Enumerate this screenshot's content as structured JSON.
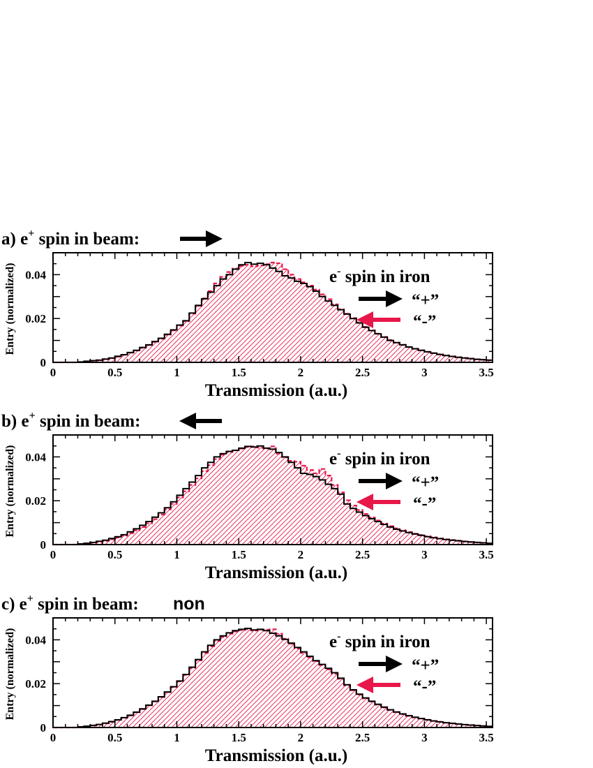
{
  "colors": {
    "plus": "#000000",
    "minus": "#e8174a",
    "axis": "#000000"
  },
  "legend_title": "spin in iron",
  "legend_title_particle": "e",
  "legend_title_sup": "-",
  "legend_plus": "“+”",
  "legend_minus": "“-”",
  "chart_data": [
    {
      "type": "histogram",
      "panel": "a)",
      "title": "e",
      "title_sup": "+",
      "title_text": "spin in beam:",
      "title_suffix": "",
      "beam_arrow": "right",
      "xlabel": "Transmission (a.u.)",
      "ylabel": "Entry (normalized)",
      "xlim": [
        0,
        3.55
      ],
      "ylim": [
        0,
        0.05
      ],
      "xticks": [
        "0",
        "0.5",
        "1",
        "1.5",
        "2",
        "2.5",
        "3",
        "3.5"
      ],
      "yticks": [
        "0",
        "0.02",
        "0.04"
      ],
      "bin_width": 0.05,
      "series": [
        {
          "name": "“+”",
          "values": [
            0,
            0,
            0,
            0,
            0.0002,
            0.0005,
            0.0008,
            0.001,
            0.0015,
            0.002,
            0.0028,
            0.0035,
            0.0045,
            0.0055,
            0.0068,
            0.008,
            0.0095,
            0.011,
            0.0128,
            0.0148,
            0.017,
            0.019,
            0.0225,
            0.026,
            0.029,
            0.032,
            0.035,
            0.038,
            0.04,
            0.0425,
            0.0445,
            0.0455,
            0.0448,
            0.0452,
            0.0445,
            0.043,
            0.0415,
            0.0395,
            0.0385,
            0.037,
            0.036,
            0.0345,
            0.0325,
            0.03,
            0.028,
            0.026,
            0.024,
            0.022,
            0.02,
            0.018,
            0.016,
            0.0145,
            0.013,
            0.0115,
            0.01,
            0.009,
            0.008,
            0.007,
            0.0062,
            0.0055,
            0.0048,
            0.0042,
            0.0036,
            0.0031,
            0.0027,
            0.0023,
            0.002,
            0.0017,
            0.0014,
            0.0012,
            0.001,
            0.0008
          ]
        },
        {
          "name": "“-”",
          "values": [
            0,
            0,
            0,
            0,
            0.0001,
            0.0004,
            0.0007,
            0.001,
            0.0014,
            0.0019,
            0.0026,
            0.0034,
            0.0044,
            0.0054,
            0.0066,
            0.0079,
            0.0093,
            0.0108,
            0.0126,
            0.0146,
            0.0168,
            0.0188,
            0.0222,
            0.0258,
            0.0292,
            0.0325,
            0.036,
            0.039,
            0.0412,
            0.0428,
            0.044,
            0.0445,
            0.0438,
            0.0442,
            0.0448,
            0.0455,
            0.0452,
            0.0425,
            0.04,
            0.038,
            0.0365,
            0.035,
            0.0332,
            0.031,
            0.0288,
            0.0265,
            0.0242,
            0.0222,
            0.0202,
            0.0182,
            0.0162,
            0.0146,
            0.0131,
            0.0116,
            0.0102,
            0.009,
            0.008,
            0.007,
            0.0062,
            0.0055,
            0.0048,
            0.0042,
            0.0037,
            0.0032,
            0.0027,
            0.0023,
            0.002,
            0.0017,
            0.0014,
            0.0012,
            0.001,
            0.0008
          ]
        }
      ]
    },
    {
      "type": "histogram",
      "panel": "b)",
      "title": "e",
      "title_sup": "+",
      "title_text": "spin in beam:",
      "title_suffix": "",
      "beam_arrow": "left",
      "xlabel": "Transmission (a.u.)",
      "ylabel": "Entry (normalized)",
      "xlim": [
        0,
        3.55
      ],
      "ylim": [
        0,
        0.05
      ],
      "xticks": [
        "0",
        "0.5",
        "1",
        "1.5",
        "2",
        "2.5",
        "3",
        "3.5"
      ],
      "yticks": [
        "0",
        "0.02",
        "0.04"
      ],
      "bin_width": 0.05,
      "series": [
        {
          "name": "“+”",
          "values": [
            0,
            0,
            0,
            0,
            0.0003,
            0.0006,
            0.001,
            0.0015,
            0.002,
            0.0028,
            0.0036,
            0.0045,
            0.0058,
            0.0072,
            0.0088,
            0.0105,
            0.0125,
            0.0145,
            0.0168,
            0.0195,
            0.0225,
            0.0255,
            0.0285,
            0.0315,
            0.035,
            0.0375,
            0.04,
            0.0415,
            0.0425,
            0.043,
            0.044,
            0.0448,
            0.0445,
            0.045,
            0.044,
            0.0435,
            0.042,
            0.04,
            0.0375,
            0.035,
            0.0325,
            0.032,
            0.031,
            0.0295,
            0.0275,
            0.0255,
            0.023,
            0.0185,
            0.0165,
            0.0148,
            0.0132,
            0.0118,
            0.0105,
            0.0092,
            0.008,
            0.007,
            0.0062,
            0.0055,
            0.0048,
            0.0042,
            0.0036,
            0.0031,
            0.0027,
            0.0023,
            0.002,
            0.0017,
            0.0014,
            0.0012,
            0.001,
            0.0008,
            0.0006
          ]
        },
        {
          "name": "“-”",
          "values": [
            0,
            0,
            0,
            0,
            0.0002,
            0.0005,
            0.0008,
            0.0012,
            0.0017,
            0.0024,
            0.0032,
            0.0041,
            0.0052,
            0.0065,
            0.008,
            0.0097,
            0.0116,
            0.0137,
            0.016,
            0.0186,
            0.0215,
            0.0243,
            0.0272,
            0.0302,
            0.0335,
            0.0362,
            0.039,
            0.041,
            0.0422,
            0.043,
            0.0438,
            0.0445,
            0.0448,
            0.0442,
            0.0438,
            0.0448,
            0.0415,
            0.0398,
            0.0382,
            0.0378,
            0.036,
            0.034,
            0.0325,
            0.0345,
            0.0315,
            0.0272,
            0.0238,
            0.0202,
            0.0178,
            0.0158,
            0.014,
            0.0124,
            0.011,
            0.0096,
            0.0084,
            0.0074,
            0.0065,
            0.0057,
            0.005,
            0.0044,
            0.0038,
            0.0033,
            0.0028,
            0.0024,
            0.0021,
            0.0018,
            0.0015,
            0.0012,
            0.001,
            0.0008,
            0.0006
          ]
        }
      ]
    },
    {
      "type": "histogram",
      "panel": "c)",
      "title": "e",
      "title_sup": "+",
      "title_text": "spin in beam:",
      "title_suffix": "non",
      "beam_arrow": "none",
      "xlabel": "Transmission (a.u.)",
      "ylabel": "Entry (normalized)",
      "xlim": [
        0,
        3.55
      ],
      "ylim": [
        0,
        0.05
      ],
      "xticks": [
        "0",
        "0.5",
        "1",
        "1.5",
        "2",
        "2.5",
        "3",
        "3.5"
      ],
      "yticks": [
        "0",
        "0.02",
        "0.04"
      ],
      "bin_width": 0.05,
      "series": [
        {
          "name": "“+”",
          "values": [
            0,
            0,
            0,
            0,
            0.0003,
            0.0006,
            0.001,
            0.0014,
            0.002,
            0.0027,
            0.0035,
            0.0045,
            0.0056,
            0.007,
            0.0085,
            0.0102,
            0.012,
            0.014,
            0.0162,
            0.0186,
            0.0212,
            0.0242,
            0.0275,
            0.031,
            0.0345,
            0.0375,
            0.04,
            0.0418,
            0.0432,
            0.0442,
            0.0448,
            0.0452,
            0.0445,
            0.0448,
            0.0442,
            0.043,
            0.0418,
            0.0402,
            0.0385,
            0.0365,
            0.0345,
            0.0325,
            0.0305,
            0.0288,
            0.027,
            0.025,
            0.0225,
            0.0195,
            0.0172,
            0.0152,
            0.0135,
            0.012,
            0.0106,
            0.0093,
            0.0081,
            0.0071,
            0.0062,
            0.0054,
            0.0047,
            0.0041,
            0.0035,
            0.003,
            0.0026,
            0.0022,
            0.0019,
            0.0016,
            0.0013,
            0.0011,
            0.0009,
            0.0007,
            0.0005
          ]
        },
        {
          "name": "“-”",
          "values": [
            0,
            0,
            0,
            0,
            0.0002,
            0.0005,
            0.0009,
            0.0013,
            0.0019,
            0.0026,
            0.0034,
            0.0044,
            0.0055,
            0.0069,
            0.0084,
            0.0101,
            0.0119,
            0.0139,
            0.0161,
            0.0185,
            0.021,
            0.024,
            0.0272,
            0.0306,
            0.034,
            0.037,
            0.0395,
            0.0413,
            0.0428,
            0.0438,
            0.0444,
            0.0448,
            0.0442,
            0.0446,
            0.0446,
            0.0448,
            0.0428,
            0.0405,
            0.0382,
            0.036,
            0.034,
            0.032,
            0.0302,
            0.0285,
            0.0265,
            0.0245,
            0.0222,
            0.0192,
            0.017,
            0.015,
            0.0133,
            0.0118,
            0.0104,
            0.0091,
            0.008,
            0.007,
            0.0061,
            0.0053,
            0.0046,
            0.004,
            0.0035,
            0.003,
            0.0026,
            0.0022,
            0.0019,
            0.0016,
            0.0013,
            0.0011,
            0.0009,
            0.0007,
            0.0005
          ]
        }
      ]
    }
  ]
}
